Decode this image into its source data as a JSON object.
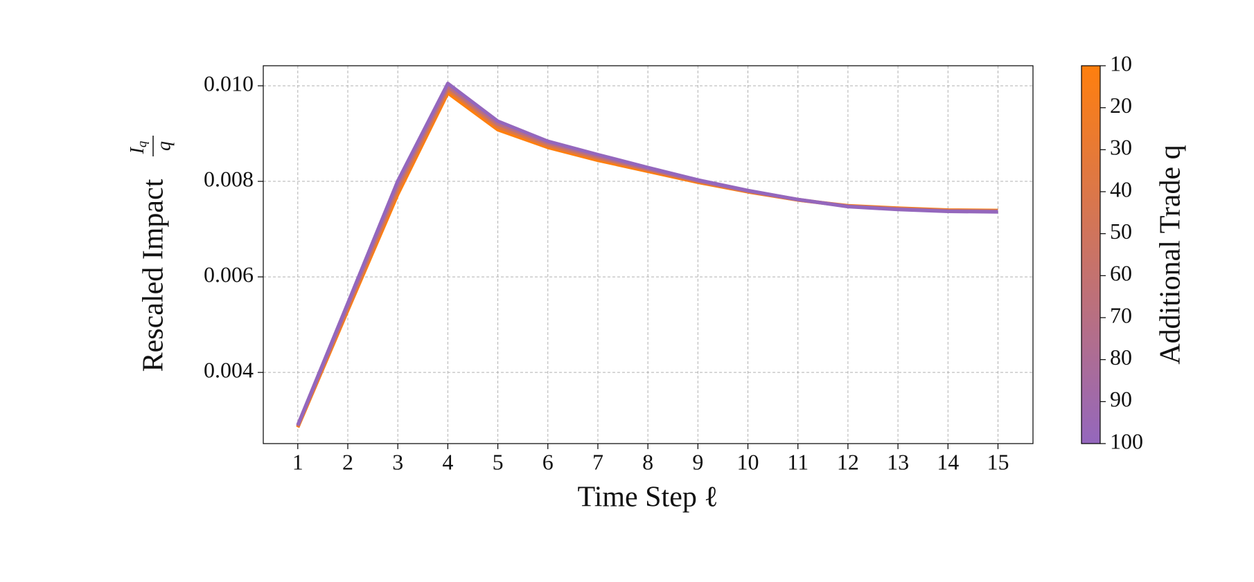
{
  "chart_data": {
    "type": "line",
    "xlabel": "Time Step ℓ",
    "ylabel": "Rescaled Impact",
    "ylabel_fraction": {
      "numerator": "I",
      "subscript": "q",
      "denominator": "q"
    },
    "x": [
      1,
      2,
      3,
      4,
      5,
      6,
      7,
      8,
      9,
      10,
      11,
      12,
      13,
      14,
      15
    ],
    "xlim": [
      0.31,
      15.7
    ],
    "xticks": [
      1,
      2,
      3,
      4,
      5,
      6,
      7,
      8,
      9,
      10,
      11,
      12,
      13,
      14,
      15
    ],
    "ylim": [
      0.00251,
      0.01042
    ],
    "yticks": [
      0.004,
      0.006,
      0.008,
      {
        "value": 0.01,
        "label": "0.010"
      }
    ],
    "grid": true,
    "series": [
      {
        "color": "#ff7f0e",
        "values": [
          0.00285,
          0.0053,
          0.00773,
          0.00985,
          0.00908,
          0.00871,
          0.00844,
          0.00821,
          0.00798,
          0.00778,
          0.00761,
          0.00749,
          0.00744,
          0.0074,
          0.00739
        ]
      },
      {
        "color": "#db7748",
        "values": [
          0.00287,
          0.00535,
          0.00782,
          0.00992,
          0.00914,
          0.00875,
          0.00848,
          0.00824,
          0.008,
          0.00779,
          0.00761,
          0.00748,
          0.00743,
          0.00739,
          0.00738
        ]
      },
      {
        "color": "#b86f83",
        "values": [
          0.00288,
          0.0054,
          0.00792,
          0.00998,
          0.0092,
          0.0088,
          0.00852,
          0.00826,
          0.00801,
          0.0078,
          0.00762,
          0.00748,
          0.00742,
          0.00738,
          0.00737
        ]
      },
      {
        "color": "#9467bd",
        "values": [
          0.0029,
          0.00545,
          0.00801,
          0.01005,
          0.00926,
          0.00884,
          0.00856,
          0.00829,
          0.00803,
          0.00781,
          0.00762,
          0.00747,
          0.00741,
          0.00737,
          0.00736
        ]
      }
    ],
    "colorbar": {
      "label": "Additional Trade q",
      "lim": [
        10,
        100
      ],
      "ticks": [
        10,
        20,
        30,
        40,
        50,
        60,
        70,
        80,
        90,
        100
      ],
      "colors": [
        "#ff7f0e",
        "#9467bd"
      ]
    }
  }
}
